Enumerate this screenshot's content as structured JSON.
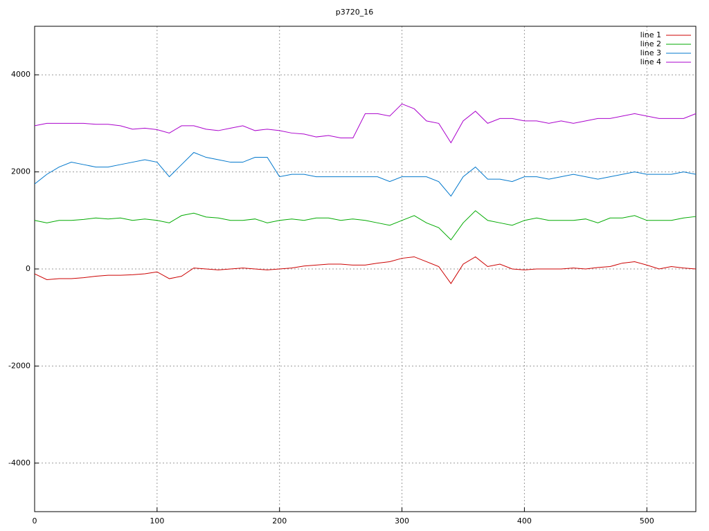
{
  "chart_data": {
    "type": "line",
    "title": "p3720_16",
    "x": [
      0,
      10,
      20,
      30,
      40,
      50,
      60,
      70,
      80,
      90,
      100,
      110,
      120,
      130,
      140,
      150,
      160,
      170,
      180,
      190,
      200,
      210,
      220,
      230,
      240,
      250,
      260,
      270,
      280,
      290,
      300,
      310,
      320,
      330,
      340,
      350,
      360,
      370,
      380,
      390,
      400,
      410,
      420,
      430,
      440,
      450,
      460,
      470,
      480,
      490,
      500,
      510,
      520,
      530,
      540
    ],
    "series": [
      {
        "name": "line 1",
        "color": "#cc0000",
        "values": [
          -100,
          -220,
          -200,
          -200,
          -180,
          -150,
          -130,
          -130,
          -120,
          -100,
          -60,
          -200,
          -150,
          20,
          0,
          -20,
          0,
          20,
          0,
          -20,
          0,
          20,
          60,
          80,
          100,
          100,
          80,
          80,
          120,
          150,
          220,
          250,
          150,
          50,
          -300,
          100,
          250,
          50,
          100,
          0,
          -20,
          0,
          0,
          0,
          20,
          0,
          30,
          50,
          120,
          150,
          80,
          0,
          50,
          20,
          0
        ]
      },
      {
        "name": "line 2",
        "color": "#00aa00",
        "values": [
          1000,
          950,
          1000,
          1000,
          1020,
          1050,
          1030,
          1050,
          1000,
          1030,
          1000,
          950,
          1100,
          1150,
          1070,
          1050,
          1000,
          1000,
          1030,
          950,
          1000,
          1030,
          1000,
          1050,
          1050,
          1000,
          1030,
          1000,
          950,
          900,
          1000,
          1100,
          950,
          850,
          600,
          950,
          1200,
          1000,
          950,
          900,
          1000,
          1050,
          1000,
          1000,
          1000,
          1030,
          950,
          1050,
          1050,
          1100,
          1000,
          1000,
          1000,
          1050,
          1080
        ]
      },
      {
        "name": "line 3",
        "color": "#0077cc",
        "values": [
          1750,
          1950,
          2100,
          2200,
          2150,
          2100,
          2100,
          2150,
          2200,
          2250,
          2200,
          1900,
          2150,
          2400,
          2300,
          2250,
          2200,
          2200,
          2300,
          2300,
          1900,
          1950,
          1950,
          1900,
          1900,
          1900,
          1900,
          1900,
          1900,
          1800,
          1900,
          1900,
          1900,
          1800,
          1500,
          1900,
          2100,
          1850,
          1850,
          1800,
          1900,
          1900,
          1850,
          1900,
          1950,
          1900,
          1850,
          1900,
          1950,
          2000,
          1950,
          1950,
          1950,
          2000,
          1950
        ]
      },
      {
        "name": "line 4",
        "color": "#aa00cc",
        "values": [
          2950,
          3000,
          3000,
          3000,
          3000,
          2980,
          2980,
          2950,
          2880,
          2900,
          2870,
          2800,
          2950,
          2950,
          2880,
          2850,
          2900,
          2950,
          2850,
          2880,
          2850,
          2800,
          2780,
          2720,
          2750,
          2700,
          2700,
          3200,
          3200,
          3150,
          3400,
          3300,
          3050,
          3000,
          2600,
          3050,
          3250,
          3000,
          3100,
          3100,
          3050,
          3050,
          3000,
          3050,
          3000,
          3050,
          3100,
          3100,
          3150,
          3200,
          3150,
          3100,
          3100,
          3100,
          3200
        ]
      }
    ],
    "xlim": [
      0,
      540
    ],
    "xticks": [
      0,
      100,
      200,
      300,
      400,
      500
    ],
    "ylim": [
      -5000,
      5000
    ],
    "yticks": [
      -4000,
      -2000,
      0,
      2000,
      4000
    ],
    "grid": true,
    "legend": "top-right"
  }
}
